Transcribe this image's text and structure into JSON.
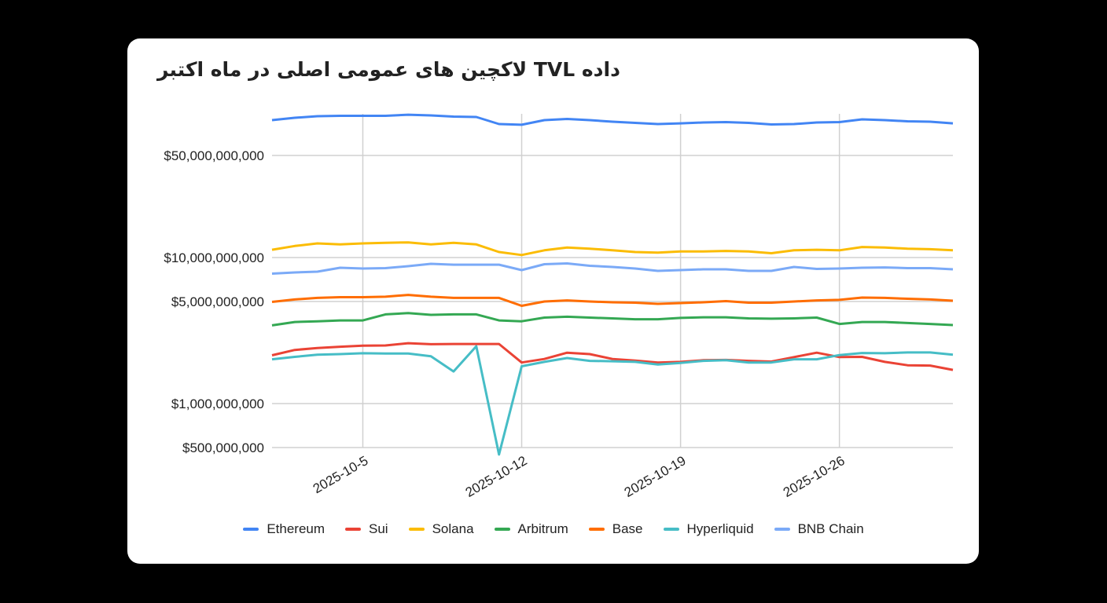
{
  "chart_data": {
    "type": "line",
    "title": "داده TVL لاکچین های عمومی اصلی در ماه اکتبر",
    "xlabel": "",
    "ylabel": "",
    "y_scale": "log",
    "ylim": [
      500000000,
      100000000000
    ],
    "y_ticks": [
      500000000,
      1000000000,
      5000000000,
      10000000000,
      50000000000
    ],
    "y_tick_labels": [
      "$500,000,000",
      "$1,000,000,000",
      "$5,000,000,000",
      "$10,000,000,000",
      "$50,000,000,000"
    ],
    "x_tick_labels": [
      "2025-10-5",
      "2025-10-12",
      "2025-10-19",
      "2025-10-26"
    ],
    "grid": true,
    "legend_position": "bottom",
    "x": [
      "2025-10-1",
      "2025-10-2",
      "2025-10-3",
      "2025-10-4",
      "2025-10-5",
      "2025-10-6",
      "2025-10-7",
      "2025-10-8",
      "2025-10-9",
      "2025-10-10",
      "2025-10-11",
      "2025-10-12",
      "2025-10-13",
      "2025-10-14",
      "2025-10-15",
      "2025-10-16",
      "2025-10-17",
      "2025-10-18",
      "2025-10-19",
      "2025-10-20",
      "2025-10-21",
      "2025-10-22",
      "2025-10-23",
      "2025-10-24",
      "2025-10-25",
      "2025-10-26",
      "2025-10-27",
      "2025-10-28",
      "2025-10-29",
      "2025-10-30",
      "2025-10-31"
    ],
    "value_unit": "billion USD",
    "series": [
      {
        "name": "Ethereum",
        "color": "#4285f4",
        "values": [
          87.3,
          90.6,
          92.8,
          93.4,
          93.4,
          93.4,
          95.1,
          94.0,
          92.3,
          91.7,
          82.0,
          81.1,
          87.3,
          88.9,
          87.3,
          85.1,
          83.6,
          82.0,
          83.0,
          84.1,
          84.6,
          83.6,
          81.5,
          82.0,
          84.1,
          84.6,
          88.4,
          87.3,
          85.7,
          85.1,
          83.0
        ]
      },
      {
        "name": "Sui",
        "color": "#ea4335",
        "values": [
          2.14,
          2.33,
          2.4,
          2.45,
          2.49,
          2.5,
          2.59,
          2.55,
          2.56,
          2.56,
          2.56,
          1.91,
          2.02,
          2.23,
          2.18,
          2.02,
          1.97,
          1.91,
          1.93,
          1.98,
          1.99,
          1.96,
          1.94,
          2.08,
          2.23,
          2.08,
          2.09,
          1.93,
          1.83,
          1.82,
          1.7
        ]
      },
      {
        "name": "Solana",
        "color": "#fbbc04",
        "values": [
          11.3,
          12.0,
          12.5,
          12.3,
          12.5,
          12.6,
          12.7,
          12.3,
          12.6,
          12.3,
          10.9,
          10.4,
          11.2,
          11.7,
          11.5,
          11.2,
          10.9,
          10.8,
          11.0,
          11.0,
          11.1,
          11.0,
          10.7,
          11.2,
          11.3,
          11.2,
          11.8,
          11.7,
          11.5,
          11.4,
          11.2
        ]
      },
      {
        "name": "Arbitrum",
        "color": "#34a853",
        "values": [
          3.43,
          3.62,
          3.66,
          3.71,
          3.71,
          4.08,
          4.16,
          4.05,
          4.08,
          4.08,
          3.71,
          3.66,
          3.88,
          3.93,
          3.88,
          3.83,
          3.78,
          3.78,
          3.86,
          3.9,
          3.9,
          3.83,
          3.81,
          3.83,
          3.88,
          3.51,
          3.62,
          3.62,
          3.56,
          3.51,
          3.45
        ]
      },
      {
        "name": "Base",
        "color": "#ff6d01",
        "values": [
          4.97,
          5.16,
          5.29,
          5.35,
          5.35,
          5.39,
          5.55,
          5.39,
          5.29,
          5.29,
          5.29,
          4.67,
          5.0,
          5.09,
          5.0,
          4.94,
          4.91,
          4.82,
          4.88,
          4.94,
          5.03,
          4.91,
          4.91,
          5.0,
          5.09,
          5.13,
          5.32,
          5.29,
          5.22,
          5.16,
          5.06
        ]
      },
      {
        "name": "Hyperliquid",
        "color": "#46bdc6",
        "values": [
          2.01,
          2.09,
          2.16,
          2.18,
          2.21,
          2.2,
          2.2,
          2.11,
          1.66,
          2.47,
          0.448,
          1.8,
          1.93,
          2.05,
          1.96,
          1.95,
          1.93,
          1.85,
          1.9,
          1.96,
          1.98,
          1.91,
          1.91,
          2.01,
          2.01,
          2.15,
          2.22,
          2.21,
          2.24,
          2.24,
          2.16
        ]
      },
      {
        "name": "BNB Chain",
        "color": "#7baaf7",
        "values": [
          7.76,
          7.9,
          8.0,
          8.51,
          8.41,
          8.46,
          8.73,
          9.06,
          8.94,
          8.94,
          8.94,
          8.2,
          9.0,
          9.11,
          8.78,
          8.62,
          8.41,
          8.1,
          8.2,
          8.31,
          8.31,
          8.1,
          8.1,
          8.62,
          8.36,
          8.41,
          8.51,
          8.56,
          8.46,
          8.46,
          8.31
        ]
      }
    ]
  }
}
